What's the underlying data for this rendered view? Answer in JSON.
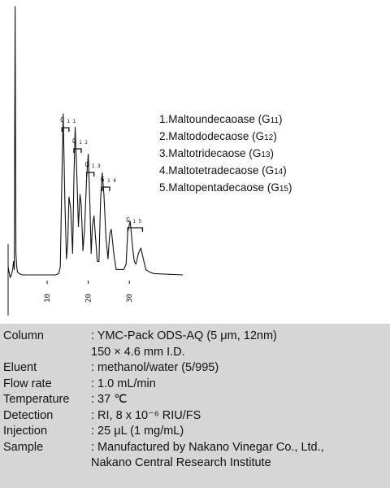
{
  "legend": [
    {
      "name": "1.Maltoundecaoase (",
      "code": "G",
      "sub": "11",
      "end": ")"
    },
    {
      "name": "2.Maltododecaose (",
      "code": "G",
      "sub": "12",
      "end": ")"
    },
    {
      "name": "3.Maltotridecaose (",
      "code": "G",
      "sub": "13",
      "end": ")"
    },
    {
      "name": "4.Maltotetradecaose (",
      "code": "G",
      "sub": "14",
      "end": ")"
    },
    {
      "name": "5.Maltopentadecaose (",
      "code": "G",
      "sub": "15",
      "end": ")"
    }
  ],
  "chart_data": {
    "type": "line",
    "xlabel": "",
    "ylabel": "",
    "x_ticks": [
      "10",
      "20",
      "30"
    ],
    "xlim": [
      0.5,
      43
    ],
    "series": [
      {
        "x": [
          0.5,
          1.0,
          1.3,
          1.6,
          1.8,
          2.0,
          2.2,
          2.4,
          2.6,
          2.8,
          3.2,
          4,
          6,
          8,
          10,
          12,
          12.8,
          13.2,
          13.6,
          13.9,
          14.3,
          14.7,
          15.0,
          15.3,
          15.7,
          16.2,
          16.5,
          16.8,
          17.2,
          17.6,
          18.0,
          18.3,
          18.7,
          19.1,
          19.6,
          20.0,
          20.4,
          20.7,
          21.0,
          21.4,
          21.8,
          22.2,
          22.6,
          23.0,
          23.4,
          23.8,
          24.3,
          24.8,
          25.2,
          25.6,
          26.2,
          26.8,
          27.4,
          28.0,
          28.6,
          29.2,
          29.6,
          30.2,
          30.8,
          31.2,
          31.6,
          32.2,
          32.8,
          33.4,
          34.0,
          35.0,
          36.0,
          43
        ],
        "y": [
          3,
          -1,
          0,
          2,
          5,
          2,
          100,
          8,
          3,
          1,
          0.5,
          0,
          0,
          0,
          0,
          0,
          0.5,
          3,
          38,
          60,
          28,
          6,
          12,
          29,
          25,
          8,
          35,
          55,
          38,
          18,
          30,
          26,
          9,
          17,
          36,
          45,
          26,
          8,
          18,
          22,
          13,
          5,
          5,
          28,
          38,
          30,
          14,
          6,
          15,
          17,
          8,
          2,
          2,
          2,
          2,
          4,
          16,
          20,
          10,
          5,
          4,
          8,
          10,
          6,
          2,
          1,
          0.5,
          0
        ]
      }
    ],
    "peak_groups": [
      {
        "code": "G",
        "sub": "11"
      },
      {
        "code": "G",
        "sub": "12"
      },
      {
        "code": "G",
        "sub": "13"
      },
      {
        "code": "G",
        "sub": "14"
      },
      {
        "code": "G",
        "sub": "15"
      }
    ]
  },
  "conditions": [
    {
      "label": "Column",
      "value": ": YMC-Pack ODS-AQ (5 μm, 12nm)\n  150 × 4.6 mm I.D."
    },
    {
      "label": "Eluent",
      "value": ": methanol/water (5/995)"
    },
    {
      "label": "Flow rate",
      "value": ": 1.0 mL/min"
    },
    {
      "label": "Temperature",
      "value": ": 37 ℃"
    },
    {
      "label": "Detection",
      "value": ": RI, 8 x 10⁻⁶ RIU/FS"
    },
    {
      "label": "Injection",
      "value": ": 25  μL (1 mg/mL)"
    },
    {
      "label": "Sample",
      "value": ": Manufactured by Nakano Vinegar Co., Ltd.,\n  Nakano Central Research Institute"
    }
  ]
}
